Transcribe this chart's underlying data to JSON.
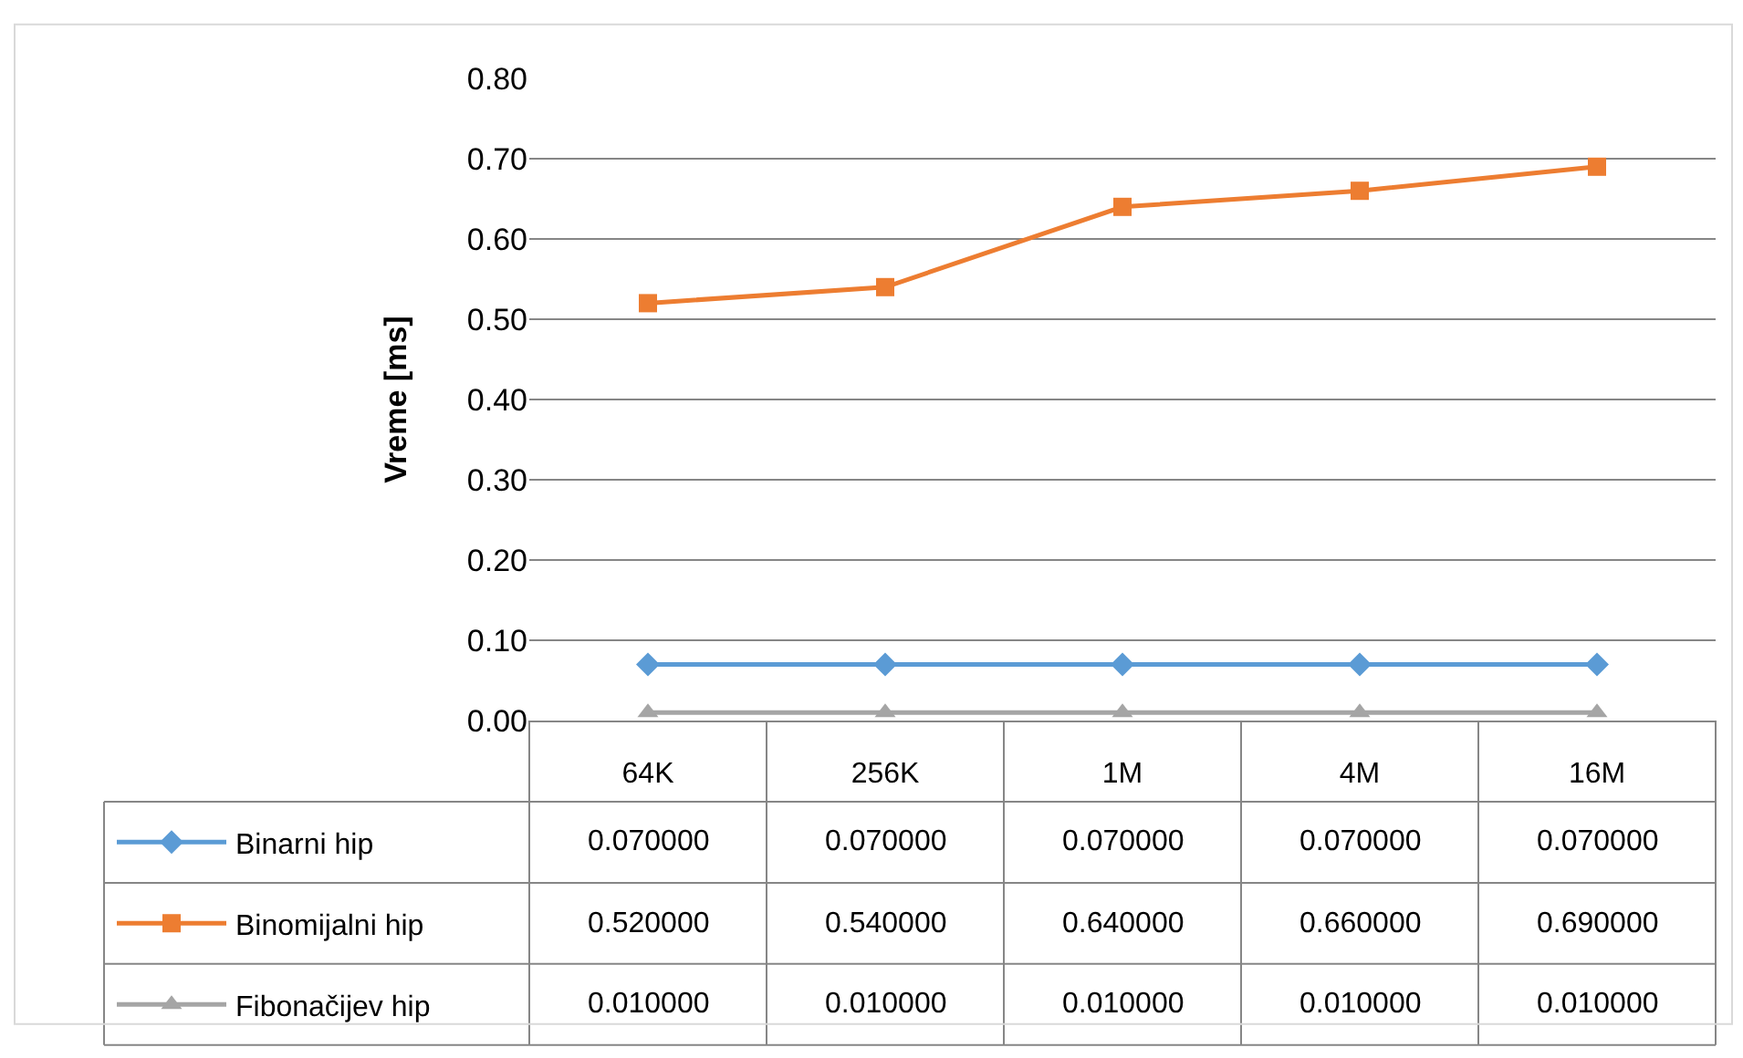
{
  "chart_data": {
    "type": "line",
    "ylabel": "Vreme [ms]",
    "categories": [
      "64K",
      "256K",
      "1M",
      "4M",
      "16M"
    ],
    "series": [
      {
        "name": "Binarni hip",
        "color": "#5b9bd5",
        "marker": "diamond",
        "values": [
          0.07,
          0.07,
          0.07,
          0.07,
          0.07
        ],
        "value_labels": [
          "0.070000",
          "0.070000",
          "0.070000",
          "0.070000",
          "0.070000"
        ]
      },
      {
        "name": "Binomijalni hip",
        "color": "#ed7d31",
        "marker": "square",
        "values": [
          0.52,
          0.54,
          0.64,
          0.66,
          0.69
        ],
        "value_labels": [
          "0.520000",
          "0.540000",
          "0.640000",
          "0.660000",
          "0.690000"
        ]
      },
      {
        "name": "Fibonačijev hip",
        "color": "#a5a5a5",
        "marker": "triangle",
        "values": [
          0.01,
          0.01,
          0.01,
          0.01,
          0.01
        ],
        "value_labels": [
          "0.010000",
          "0.010000",
          "0.010000",
          "0.010000",
          "0.010000"
        ]
      }
    ],
    "ylim": [
      0,
      0.8
    ],
    "yticks": [
      {
        "value": 0,
        "label": "0.00"
      },
      {
        "value": 0.1,
        "label": "0.10"
      },
      {
        "value": 0.2,
        "label": "0.20"
      },
      {
        "value": 0.3,
        "label": "0.30"
      },
      {
        "value": 0.4,
        "label": "0.40"
      },
      {
        "value": 0.5,
        "label": "0.50"
      },
      {
        "value": 0.6,
        "label": "0.60"
      },
      {
        "value": 0.7,
        "label": "0.70"
      },
      {
        "value": 0.8,
        "label": "0.80"
      }
    ],
    "grid": "y",
    "legend": "bottom left",
    "line_style": "solid"
  }
}
